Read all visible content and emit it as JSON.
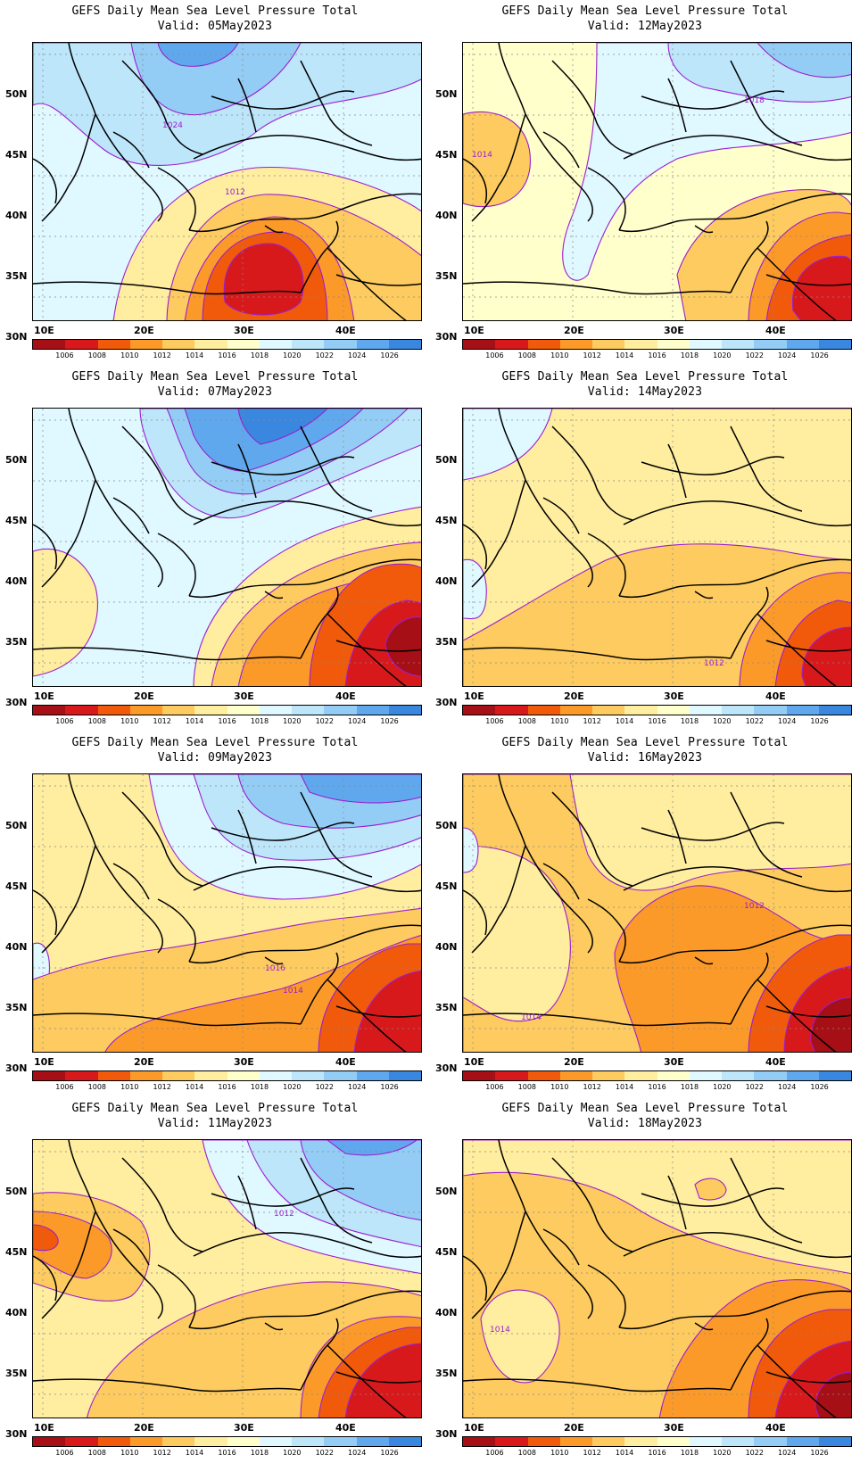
{
  "colorbar": {
    "labels": [
      "1006",
      "1008",
      "1010",
      "1012",
      "1014",
      "1016",
      "1018",
      "1020",
      "1022",
      "1024",
      "1026"
    ],
    "colors": [
      "#a50f15",
      "#d7191c",
      "#f05a0a",
      "#fb9a29",
      "#fdcb5f",
      "#ffeda0",
      "#ffffcc",
      "#e0f8ff",
      "#bde6fb",
      "#93cdf5",
      "#5fa8ee",
      "#3a87e0"
    ]
  },
  "axes": {
    "lat_labels": [
      "50N",
      "45N",
      "40N",
      "35N",
      "30N"
    ],
    "lon_labels": [
      "10E",
      "20E",
      "30E",
      "40E"
    ]
  },
  "panels": [
    {
      "title": "GEFS Daily Mean Sea Level Pressure Total",
      "valid": "Valid: 05May2023",
      "contour_label": "1012",
      "contour_label2": "1024",
      "base": "#e0f8ff"
    },
    {
      "title": "GEFS Daily Mean Sea Level Pressure Total",
      "valid": "Valid: 12May2023",
      "contour_label": "1014",
      "contour_label2": "1018",
      "base": "#ffffcc"
    },
    {
      "title": "GEFS Daily Mean Sea Level Pressure Total",
      "valid": "Valid: 07May2023",
      "contour_label": "",
      "contour_label2": "",
      "base": "#e0f8ff"
    },
    {
      "title": "GEFS Daily Mean Sea Level Pressure Total",
      "valid": "Valid: 14May2023",
      "contour_label": "1012",
      "contour_label2": "",
      "base": "#ffeda0"
    },
    {
      "title": "GEFS Daily Mean Sea Level Pressure Total",
      "valid": "Valid: 09May2023",
      "contour_label": "1016",
      "contour_label2": "1014",
      "base": "#ffeda0"
    },
    {
      "title": "GEFS Daily Mean Sea Level Pressure Total",
      "valid": "Valid: 16May2023",
      "contour_label": "1012",
      "contour_label2": "1014",
      "base": "#fdcb5f"
    },
    {
      "title": "GEFS Daily Mean Sea Level Pressure Total",
      "valid": "Valid: 11May2023",
      "contour_label": "1012",
      "contour_label2": "",
      "base": "#ffeda0"
    },
    {
      "title": "GEFS Daily Mean Sea Level Pressure Total",
      "valid": "Valid: 18May2023",
      "contour_label": "1014",
      "contour_label2": "",
      "base": "#ffeda0"
    }
  ]
}
